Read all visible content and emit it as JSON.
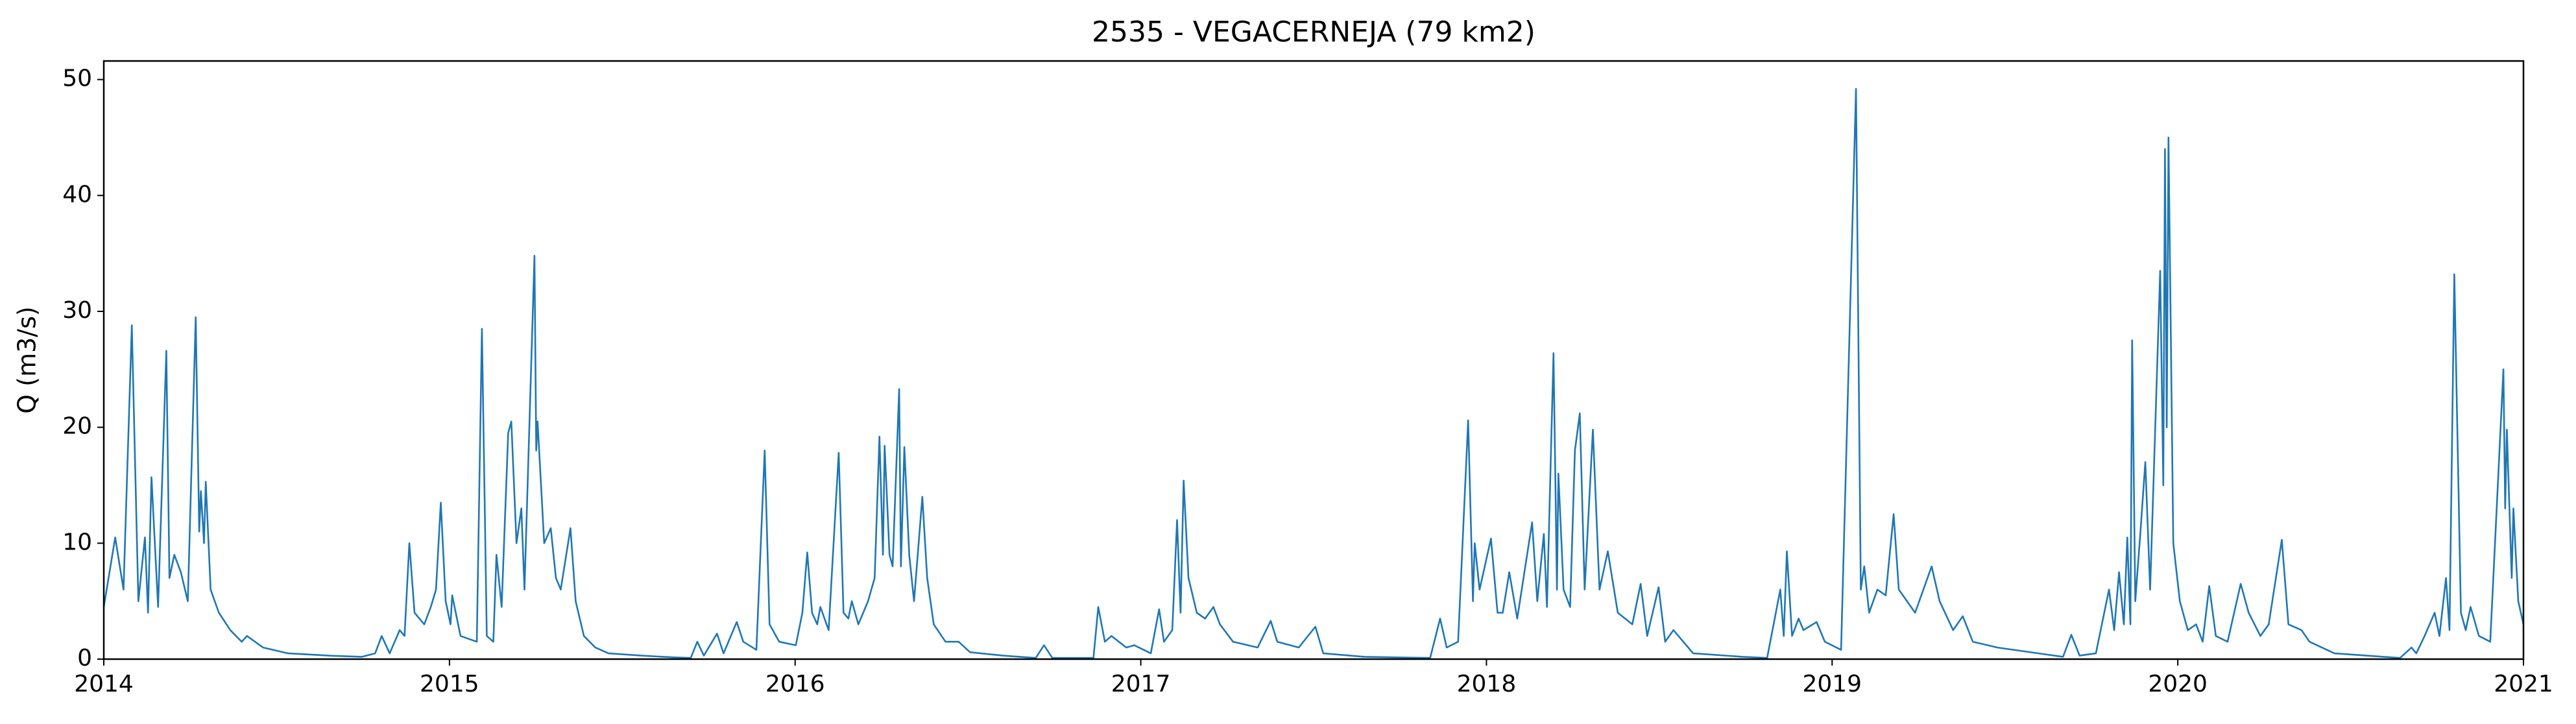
{
  "chart_data": {
    "type": "line",
    "title": "2535 - VEGACERNEJA (79 km2)",
    "y_label": "Q (m3/s)",
    "xlim": [
      2014,
      2021
    ],
    "xticks": [
      2014,
      2015,
      2016,
      2017,
      2018,
      2019,
      2020,
      2021
    ],
    "ylim": [
      0,
      51.6
    ],
    "yticks": [
      0,
      10,
      20,
      30,
      40,
      50
    ],
    "grid": false,
    "x": [
      2014.0,
      2014.033,
      2014.057,
      2014.081,
      2014.1,
      2014.119,
      2014.128,
      2014.138,
      2014.157,
      2014.181,
      2014.19,
      2014.204,
      2014.223,
      2014.243,
      2014.266,
      2014.276,
      2014.281,
      2014.29,
      2014.295,
      2014.309,
      2014.333,
      2014.366,
      2014.399,
      2014.414,
      2014.461,
      2014.533,
      2014.651,
      2014.747,
      2014.785,
      2014.804,
      2014.827,
      2014.856,
      2014.87,
      2014.884,
      2014.899,
      2014.927,
      2014.946,
      2014.961,
      2014.975,
      2014.989,
      2015.003,
      2015.008,
      2015.032,
      2015.079,
      2015.094,
      2015.108,
      2015.127,
      2015.136,
      2015.151,
      2015.17,
      2015.179,
      2015.194,
      2015.208,
      2015.217,
      2015.246,
      2015.251,
      2015.255,
      2015.274,
      2015.293,
      2015.308,
      2015.322,
      2015.35,
      2015.365,
      2015.389,
      2015.422,
      2015.46,
      2015.555,
      2015.65,
      2015.698,
      2015.717,
      2015.736,
      2015.774,
      2015.793,
      2015.831,
      2015.85,
      2015.888,
      2015.912,
      2015.926,
      2015.954,
      2016.002,
      2016.021,
      2016.035,
      2016.049,
      2016.064,
      2016.073,
      2016.097,
      2016.126,
      2016.14,
      2016.154,
      2016.164,
      2016.183,
      2016.211,
      2016.23,
      2016.244,
      2016.254,
      2016.259,
      2016.273,
      2016.282,
      2016.301,
      2016.306,
      2016.316,
      2016.33,
      2016.344,
      2016.368,
      2016.382,
      2016.401,
      2016.435,
      2016.473,
      2016.506,
      2016.601,
      2016.696,
      2016.72,
      2016.744,
      2016.863,
      2016.877,
      2016.896,
      2016.915,
      2016.958,
      2016.981,
      2017.029,
      2017.053,
      2017.067,
      2017.091,
      2017.105,
      2017.115,
      2017.124,
      2017.138,
      2017.162,
      2017.186,
      2017.21,
      2017.229,
      2017.267,
      2017.338,
      2017.376,
      2017.395,
      2017.457,
      2017.505,
      2017.528,
      2017.647,
      2017.837,
      2017.866,
      2017.885,
      2017.918,
      2017.947,
      2017.961,
      2017.966,
      2017.98,
      2018.013,
      2018.032,
      2018.047,
      2018.066,
      2018.089,
      2018.132,
      2018.147,
      2018.166,
      2018.175,
      2018.194,
      2018.204,
      2018.208,
      2018.223,
      2018.242,
      2018.256,
      2018.27,
      2018.284,
      2018.308,
      2018.327,
      2018.351,
      2018.38,
      2018.422,
      2018.446,
      2018.465,
      2018.498,
      2018.517,
      2018.541,
      2018.598,
      2018.741,
      2018.812,
      2018.85,
      2018.86,
      2018.869,
      2018.884,
      2018.903,
      2018.917,
      2018.955,
      2018.979,
      2019.026,
      2019.069,
      2019.083,
      2019.093,
      2019.107,
      2019.131,
      2019.155,
      2019.178,
      2019.193,
      2019.24,
      2019.288,
      2019.311,
      2019.35,
      2019.378,
      2019.407,
      2019.478,
      2019.597,
      2019.668,
      2019.692,
      2019.716,
      2019.763,
      2019.801,
      2019.816,
      2019.83,
      2019.844,
      2019.854,
      2019.863,
      2019.868,
      2019.877,
      2019.892,
      2019.906,
      2019.92,
      2019.949,
      2019.958,
      2019.963,
      2019.968,
      2019.973,
      2019.987,
      2020.006,
      2020.029,
      2020.053,
      2020.072,
      2020.091,
      2020.11,
      2020.144,
      2020.182,
      2020.205,
      2020.239,
      2020.263,
      2020.301,
      2020.32,
      2020.358,
      2020.381,
      2020.453,
      2020.596,
      2020.643,
      2020.676,
      2020.69,
      2020.714,
      2020.743,
      2020.757,
      2020.776,
      2020.786,
      2020.8,
      2020.819,
      2020.833,
      2020.847,
      2020.871,
      2020.904,
      2020.942,
      2020.947,
      2020.952,
      2020.966,
      2020.971,
      2020.985,
      2021.0
    ],
    "series": [
      {
        "name": "Q",
        "color": "#1f77b4",
        "values": [
          4.5,
          10.5,
          6,
          28.8,
          5,
          10.5,
          4,
          15.7,
          4.5,
          26.6,
          7,
          9,
          7.5,
          5,
          29.5,
          11,
          14.5,
          10,
          15.3,
          6,
          4,
          2.5,
          1.5,
          2,
          1,
          0.5,
          0.3,
          0.2,
          0.5,
          2,
          0.5,
          2.5,
          2,
          10,
          4,
          3,
          4.5,
          6,
          13.5,
          5,
          3,
          5.5,
          2,
          1.5,
          28.5,
          2,
          1.5,
          9,
          4.5,
          19.5,
          20.5,
          10,
          13,
          6,
          34.8,
          18,
          20.5,
          10,
          11.3,
          7,
          6,
          11.3,
          5,
          2,
          1,
          0.5,
          0.3,
          0.15,
          0.1,
          1.5,
          0.3,
          2.2,
          0.5,
          3.2,
          1.5,
          0.8,
          18,
          3,
          1.5,
          1.2,
          4,
          9.2,
          4,
          3,
          4.5,
          2.5,
          17.8,
          4,
          3.5,
          5,
          3,
          5,
          7,
          19.2,
          9,
          18.4,
          9,
          8,
          23.3,
          8,
          18.3,
          9,
          5,
          14,
          7,
          3,
          1.5,
          1.5,
          0.6,
          0.3,
          0.1,
          1.2,
          0.1,
          0.1,
          4.5,
          1.5,
          2,
          1,
          1.2,
          0.5,
          4.3,
          1.5,
          2.5,
          12,
          4,
          15.4,
          7,
          4,
          3.5,
          4.5,
          3,
          1.5,
          1,
          3.3,
          1.5,
          1,
          2.8,
          0.5,
          0.2,
          0.1,
          3.5,
          1,
          1.5,
          20.6,
          5,
          10,
          6,
          10.4,
          4,
          4,
          7.5,
          3.5,
          11.8,
          5,
          10.8,
          4.5,
          26.4,
          6,
          16,
          6,
          4.5,
          18,
          21.2,
          6,
          19.8,
          6,
          9.3,
          4,
          3,
          6.5,
          2,
          6.2,
          1.5,
          2.5,
          0.5,
          0.2,
          0.1,
          6,
          2,
          9.3,
          2,
          3.5,
          2.5,
          3.2,
          1.5,
          0.8,
          49.2,
          6,
          8,
          4,
          6,
          5.5,
          12.5,
          6,
          4,
          8,
          5,
          2.5,
          3.7,
          1.5,
          1,
          0.5,
          0.2,
          2.1,
          0.3,
          0.5,
          6,
          2.5,
          7.5,
          3,
          10.5,
          3,
          27.5,
          5,
          11,
          17,
          6,
          33.5,
          15,
          44,
          20,
          45,
          10,
          5,
          2.5,
          3,
          1.5,
          6.3,
          2,
          1.5,
          6.5,
          4,
          2,
          3,
          10.3,
          3,
          2.5,
          1.5,
          0.5,
          0.2,
          0.1,
          1,
          0.5,
          2,
          4,
          2,
          7,
          2.5,
          33.2,
          4,
          2.5,
          4.5,
          2,
          1.5,
          25,
          13,
          19.8,
          7,
          13,
          5,
          3
        ]
      }
    ]
  }
}
